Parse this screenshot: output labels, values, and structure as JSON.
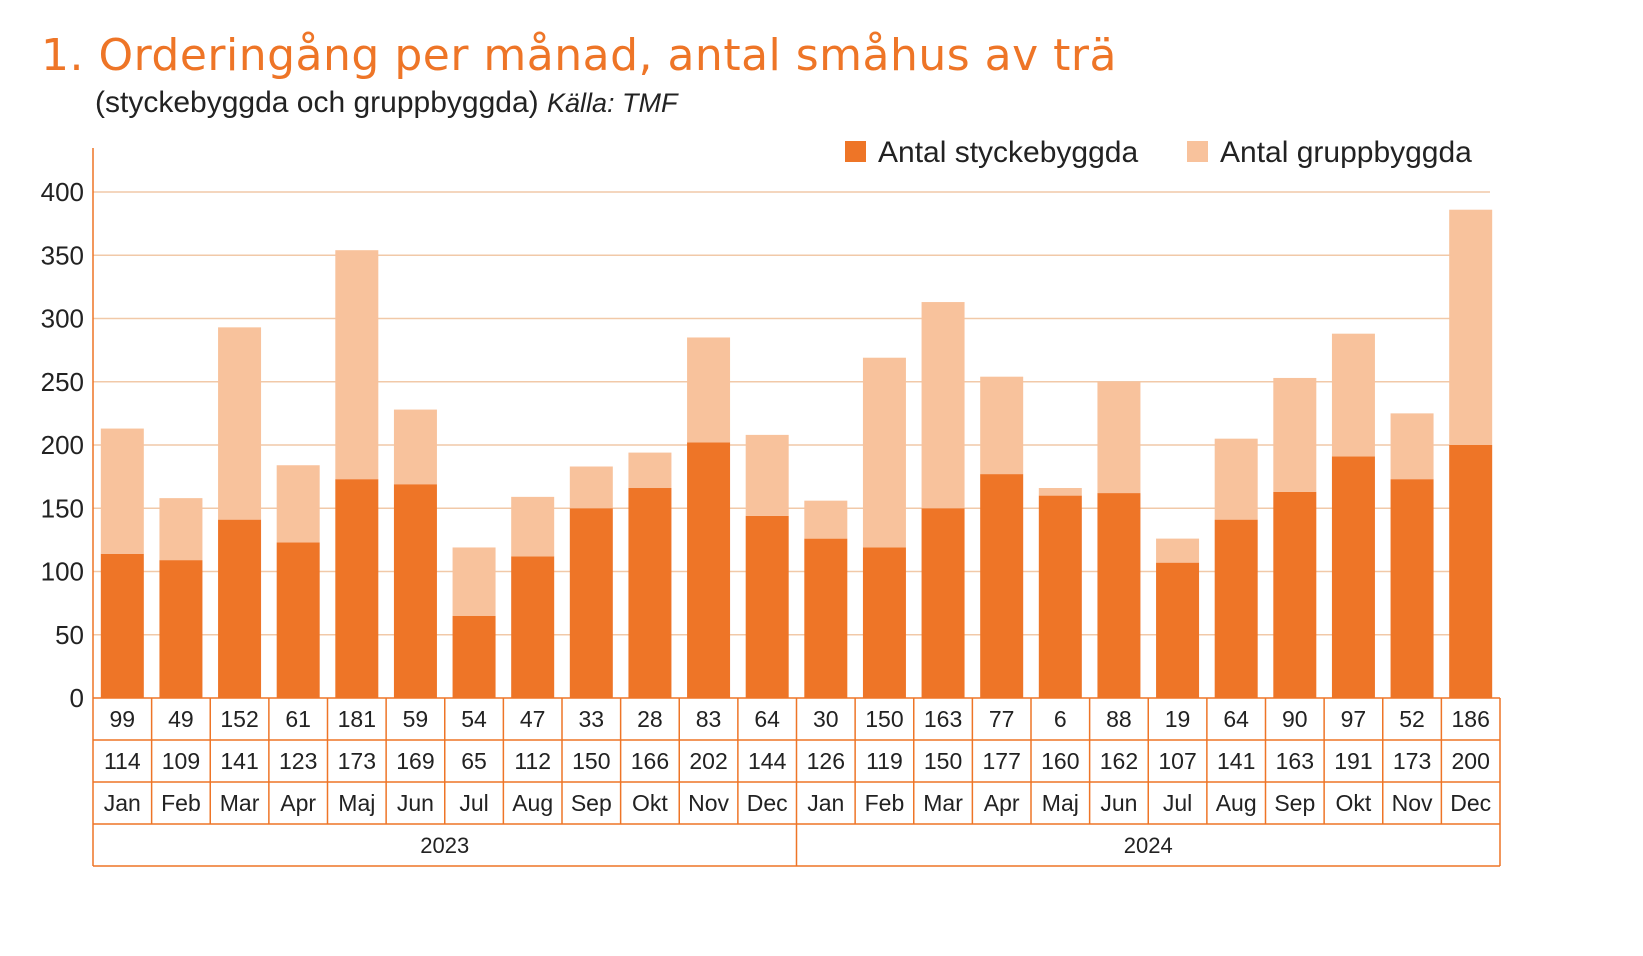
{
  "chart_data": {
    "type": "bar",
    "stacked": true,
    "title": "1. Orderingång per månad, antal småhus av trä",
    "subtitle": "(styckebyggda och gruppbyggda)",
    "source": "Källa: TMF",
    "ylim": [
      0,
      400
    ],
    "yticks": [
      0,
      50,
      100,
      150,
      200,
      250,
      300,
      350,
      400
    ],
    "grid": true,
    "legend_position": "top-right",
    "colors": {
      "stycke": "#ee7527",
      "grupp": "#f8c29c",
      "grid": "#f1c9a8",
      "table": "#ee7527"
    },
    "categories": [
      "Jan",
      "Feb",
      "Mar",
      "Apr",
      "Maj",
      "Jun",
      "Jul",
      "Aug",
      "Sep",
      "Okt",
      "Nov",
      "Dec",
      "Jan",
      "Feb",
      "Mar",
      "Apr",
      "Maj",
      "Jun",
      "Jul",
      "Aug",
      "Sep",
      "Okt",
      "Nov",
      "Dec"
    ],
    "years": [
      "2023",
      "2024"
    ],
    "series": [
      {
        "name": "Antal styckebyggda",
        "values": [
          114,
          109,
          141,
          123,
          173,
          169,
          65,
          112,
          150,
          166,
          202,
          144,
          126,
          119,
          150,
          177,
          160,
          162,
          107,
          141,
          163,
          191,
          173,
          200
        ]
      },
      {
        "name": "Antal gruppbyggda",
        "values": [
          99,
          49,
          152,
          61,
          181,
          59,
          54,
          47,
          33,
          28,
          83,
          64,
          30,
          150,
          163,
          77,
          6,
          88,
          19,
          64,
          90,
          97,
          52,
          186
        ]
      }
    ]
  }
}
